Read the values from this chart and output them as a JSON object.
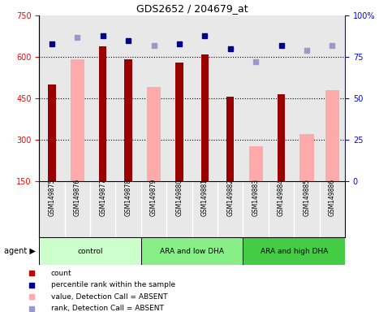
{
  "title": "GDS2652 / 204679_at",
  "samples": [
    "GSM149875",
    "GSM149876",
    "GSM149877",
    "GSM149878",
    "GSM149879",
    "GSM149880",
    "GSM149881",
    "GSM149882",
    "GSM149883",
    "GSM149884",
    "GSM149885",
    "GSM149886"
  ],
  "groups": [
    {
      "label": "control",
      "color": "#ccffcc",
      "start": 0,
      "end": 4
    },
    {
      "label": "ARA and low DHA",
      "color": "#88ee88",
      "start": 4,
      "end": 8
    },
    {
      "label": "ARA and high DHA",
      "color": "#44cc44",
      "start": 8,
      "end": 12
    }
  ],
  "count_values": [
    500,
    null,
    640,
    590,
    null,
    580,
    610,
    455,
    null,
    465,
    null,
    null
  ],
  "absent_value_bars": [
    null,
    590,
    null,
    null,
    490,
    null,
    null,
    null,
    275,
    null,
    320,
    480
  ],
  "percentile_rank": [
    83,
    null,
    88,
    85,
    null,
    83,
    88,
    80,
    null,
    82,
    null,
    null
  ],
  "absent_rank": [
    null,
    87,
    null,
    null,
    82,
    null,
    null,
    null,
    72,
    null,
    79,
    82
  ],
  "ylim_left": [
    150,
    750
  ],
  "ylim_right": [
    0,
    100
  ],
  "yticks_left": [
    150,
    300,
    450,
    600,
    750
  ],
  "yticks_right": [
    0,
    25,
    50,
    75,
    100
  ],
  "bar_color_count": "#990000",
  "bar_color_absent": "#ffaaaa",
  "dot_color_present": "#00008b",
  "dot_color_absent": "#9999cc",
  "background_color": "#e8e8e8",
  "legend_items": [
    {
      "color": "#cc0000",
      "marker": "s",
      "label": "count"
    },
    {
      "color": "#00008b",
      "marker": "s",
      "label": "percentile rank within the sample"
    },
    {
      "color": "#ffaaaa",
      "marker": "s",
      "label": "value, Detection Call = ABSENT"
    },
    {
      "color": "#9999cc",
      "marker": "s",
      "label": "rank, Detection Call = ABSENT"
    }
  ]
}
